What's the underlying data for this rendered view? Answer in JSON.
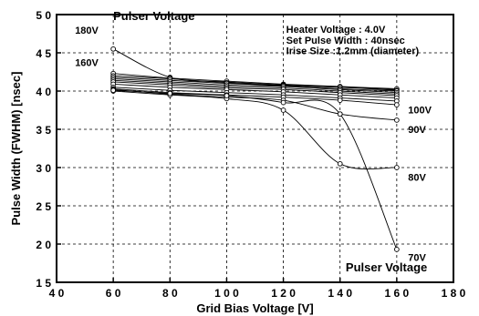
{
  "chart_data": {
    "type": "line",
    "title": "",
    "xlabel": "Grid Bias Voltage [V]",
    "ylabel": "Pulse Width (FWHM) [nsec]",
    "xlim": [
      40,
      180
    ],
    "ylim": [
      15,
      50
    ],
    "x_ticks": [
      40,
      60,
      80,
      100,
      120,
      140,
      160,
      180
    ],
    "y_ticks": [
      15,
      20,
      25,
      30,
      35,
      40,
      45,
      50
    ],
    "x_tick_labels": [
      "4 0",
      "6 0",
      "8 0",
      "1 0 0",
      "1 2 0",
      "1 4 0",
      "1 6 0",
      "1 8 0"
    ],
    "y_tick_labels": [
      "1 5",
      "2 0",
      "2 5",
      "3 0",
      "3 5",
      "4 0",
      "4 5",
      "5 0"
    ],
    "grid": true,
    "x": [
      60,
      80,
      100,
      120,
      140,
      160
    ],
    "series": [
      {
        "name": "180V",
        "values": [
          45.5,
          41.8,
          41.2,
          40.8,
          40.5,
          40.2
        ]
      },
      {
        "name": "160V",
        "values": [
          42.3,
          41.7,
          41.3,
          40.9,
          40.6,
          40.3
        ]
      },
      {
        "name": "",
        "values": [
          42.0,
          41.6,
          41.1,
          40.8,
          40.5,
          40.1
        ]
      },
      {
        "name": "",
        "values": [
          41.8,
          41.4,
          41.0,
          40.7,
          40.3,
          40.0
        ]
      },
      {
        "name": "",
        "values": [
          41.6,
          41.2,
          40.8,
          40.6,
          40.2,
          39.8
        ]
      },
      {
        "name": "",
        "values": [
          41.4,
          41.0,
          40.6,
          40.4,
          40.0,
          39.6
        ]
      },
      {
        "name": "",
        "values": [
          41.2,
          40.8,
          40.4,
          40.2,
          39.8,
          39.4
        ]
      },
      {
        "name": "",
        "values": [
          40.9,
          40.5,
          40.2,
          39.9,
          39.5,
          39.1
        ]
      },
      {
        "name": "",
        "values": [
          40.5,
          40.1,
          39.8,
          39.5,
          39.1,
          38.7
        ]
      },
      {
        "name": "100V",
        "values": [
          40.3,
          39.8,
          39.5,
          39.2,
          38.8,
          38.2
        ]
      },
      {
        "name": "90V",
        "values": [
          40.2,
          39.6,
          39.2,
          38.8,
          37.0,
          36.2
        ]
      },
      {
        "name": "80V",
        "values": [
          40.0,
          39.5,
          39.0,
          37.5,
          30.5,
          30.0
        ]
      },
      {
        "name": "70V",
        "values": [
          40.1,
          39.7,
          39.4,
          38.5,
          37.0,
          19.3
        ]
      }
    ],
    "annotations": [
      {
        "text": "Pulser  Voltage",
        "x": 60,
        "y": 49.3,
        "anchor": "start"
      },
      {
        "text": "Pulser  Voltage",
        "x": 142,
        "y": 16.4,
        "anchor": "start"
      },
      {
        "text": "180V",
        "x": 46.5,
        "y": 47.5,
        "anchor": "start"
      },
      {
        "text": "160V",
        "x": 46.5,
        "y": 43.3,
        "anchor": "start"
      },
      {
        "text": "100V",
        "x": 164,
        "y": 37.1,
        "anchor": "start"
      },
      {
        "text": "90V",
        "x": 164,
        "y": 34.5,
        "anchor": "start"
      },
      {
        "text": "80V",
        "x": 164,
        "y": 28.3,
        "anchor": "start"
      },
      {
        "text": "70V",
        "x": 164,
        "y": 17.8,
        "anchor": "start"
      },
      {
        "text": "Heater  Voltage  :  4.0V",
        "x": 121,
        "y": 47.6,
        "anchor": "start"
      },
      {
        "text": "Set  Pulse  Width  :  40nsec",
        "x": 121,
        "y": 46.2,
        "anchor": "start"
      },
      {
        "text": "Irise  Size  :1.2mm  (diameter)",
        "x": 121,
        "y": 44.8,
        "anchor": "start"
      }
    ]
  }
}
